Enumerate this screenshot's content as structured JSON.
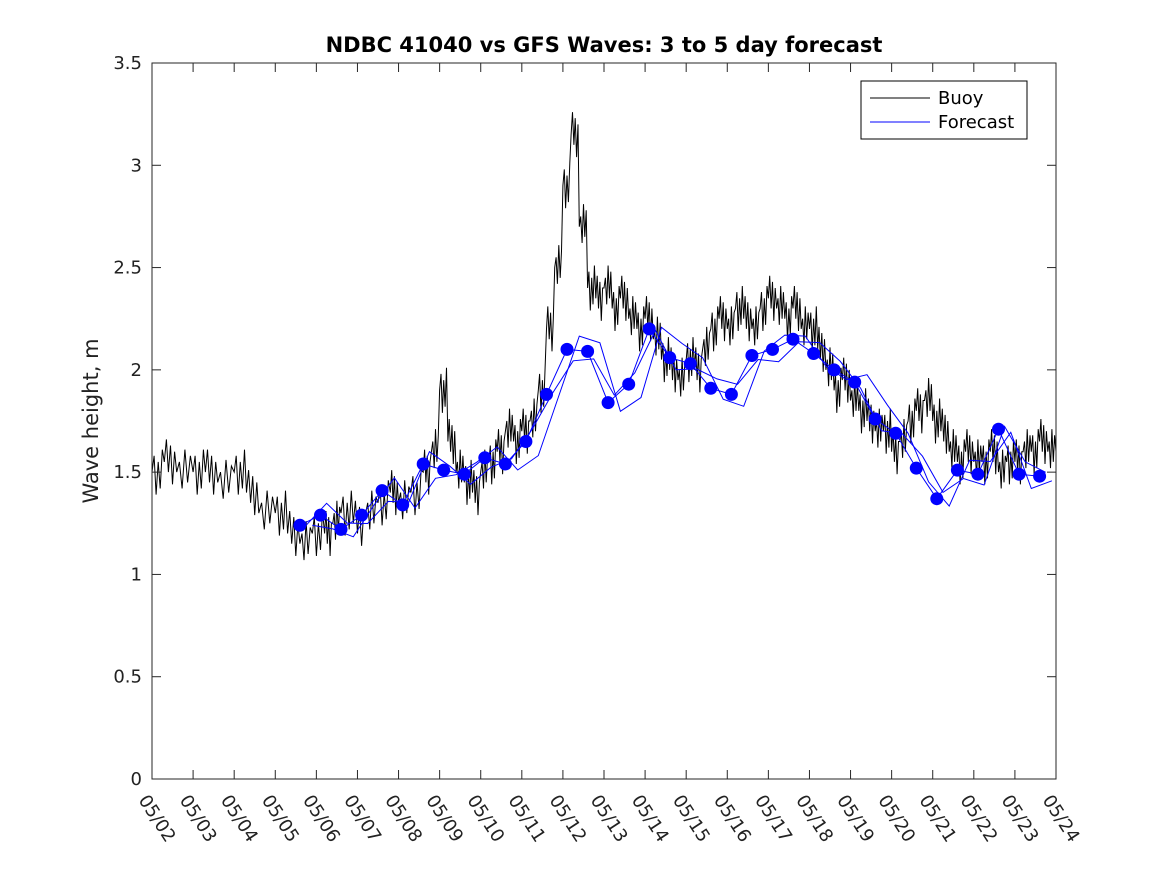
{
  "chart_data": {
    "type": "line",
    "title": "NDBC 41040 vs GFS Waves: 3 to 5 day forecast",
    "xlabel": "",
    "ylabel": "Wave height, m",
    "xlim": [
      "05/02",
      "05/24"
    ],
    "ylim": [
      0,
      3.5
    ],
    "yticks": [
      0,
      0.5,
      1,
      1.5,
      2,
      2.5,
      3,
      3.5
    ],
    "xticks": [
      "05/02",
      "05/03",
      "05/04",
      "05/05",
      "05/06",
      "05/07",
      "05/08",
      "05/09",
      "05/10",
      "05/11",
      "05/12",
      "05/13",
      "05/14",
      "05/15",
      "05/16",
      "05/17",
      "05/18",
      "05/19",
      "05/20",
      "05/21",
      "05/22",
      "05/23",
      "05/24"
    ],
    "legend": {
      "placement": "top-right",
      "entries": [
        "Buoy",
        "Forecast"
      ]
    },
    "grid": false,
    "colors": {
      "buoy": "#000000",
      "forecast": "#0000ff",
      "forecast_marker": "#0000ff"
    },
    "series": [
      {
        "name": "Buoy",
        "x_days": [
          0,
          0.3,
          0.6,
          1.0,
          1.3,
          1.6,
          2.0,
          2.3,
          2.6,
          3.0,
          3.3,
          3.6,
          3.9,
          4.2,
          4.4,
          4.6,
          4.9,
          5.2,
          5.5,
          5.8,
          6.0,
          6.3,
          6.6,
          6.8,
          7.0,
          7.2,
          7.4,
          7.6,
          7.8,
          8.0,
          8.2,
          8.4,
          8.6,
          8.8,
          9.0,
          9.2,
          9.4,
          9.6,
          9.8,
          10.0,
          10.2,
          10.4,
          10.6,
          10.8,
          11.0,
          11.2,
          11.4,
          11.6,
          11.8,
          12.0,
          12.2,
          12.4,
          12.6,
          12.8,
          13.0,
          13.2,
          13.4,
          13.6,
          13.8,
          14.0,
          14.2,
          14.4,
          14.6,
          14.8,
          15.0,
          15.2,
          15.4,
          15.6,
          15.8,
          16.0,
          16.2,
          16.4,
          16.6,
          16.8,
          17.0,
          17.2,
          17.4,
          17.6,
          17.8,
          18.0,
          18.2,
          18.4,
          18.6,
          18.8,
          19.0,
          19.2,
          19.4,
          19.6,
          19.8,
          20.0,
          20.2,
          20.4,
          20.6,
          20.8,
          21.0,
          21.2,
          21.4,
          21.6,
          21.8,
          22.0
        ],
        "values": [
          1.5,
          1.55,
          1.5,
          1.5,
          1.5,
          1.45,
          1.5,
          1.4,
          1.3,
          1.3,
          1.2,
          1.15,
          1.2,
          1.2,
          1.25,
          1.3,
          1.25,
          1.3,
          1.35,
          1.4,
          1.35,
          1.4,
          1.5,
          1.6,
          1.9,
          1.65,
          1.5,
          1.45,
          1.4,
          1.5,
          1.55,
          1.6,
          1.7,
          1.65,
          1.7,
          1.75,
          1.9,
          2.2,
          2.5,
          2.9,
          3.15,
          2.7,
          2.4,
          2.35,
          2.4,
          2.3,
          2.35,
          2.25,
          2.2,
          2.25,
          2.15,
          2.05,
          2.0,
          1.95,
          2.05,
          2.0,
          2.1,
          2.2,
          2.25,
          2.2,
          2.3,
          2.25,
          2.2,
          2.3,
          2.35,
          2.3,
          2.25,
          2.3,
          2.2,
          2.2,
          2.1,
          2.0,
          1.9,
          1.95,
          1.85,
          1.8,
          1.75,
          1.7,
          1.7,
          1.6,
          1.65,
          1.75,
          1.8,
          1.85,
          1.75,
          1.7,
          1.6,
          1.55,
          1.6,
          1.55,
          1.55,
          1.6,
          1.5,
          1.55,
          1.55,
          1.6,
          1.6,
          1.65,
          1.6,
          1.6
        ]
      },
      {
        "name": "Forecast",
        "x_days": [
          3.6,
          4.1,
          4.6,
          5.1,
          5.6,
          6.1,
          6.6,
          7.1,
          7.6,
          8.1,
          8.6,
          9.1,
          9.6,
          10.1,
          10.6,
          11.1,
          11.6,
          12.1,
          12.6,
          13.1,
          13.6,
          14.1,
          14.6,
          15.1,
          15.6,
          16.1,
          16.6,
          17.1,
          17.6,
          18.1,
          18.6,
          19.1,
          19.6,
          20.1,
          20.6,
          21.1,
          21.6
        ],
        "values": [
          1.24,
          1.29,
          1.22,
          1.29,
          1.41,
          1.34,
          1.54,
          1.51,
          1.49,
          1.57,
          1.54,
          1.65,
          1.88,
          2.1,
          2.09,
          1.84,
          1.93,
          2.2,
          2.06,
          2.03,
          1.91,
          1.88,
          2.07,
          2.1,
          2.15,
          2.08,
          2.0,
          1.94,
          1.76,
          1.69,
          1.52,
          1.37,
          1.51,
          1.49,
          1.71,
          1.49,
          1.48
        ]
      }
    ]
  }
}
